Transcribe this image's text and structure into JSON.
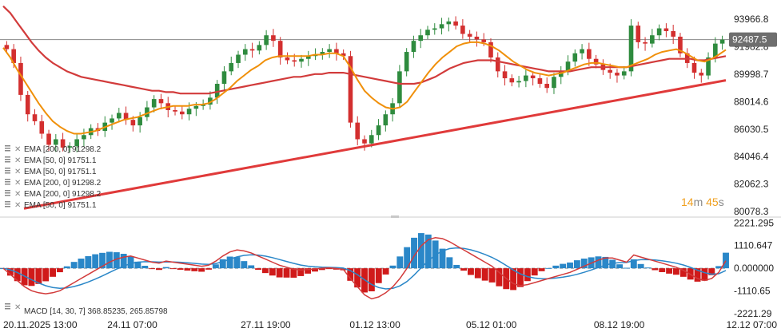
{
  "chart_data": {
    "type": "candlestick",
    "price_panel": {
      "y_ticks": [
        "93966.8",
        "91982.8",
        "89998.7",
        "88014.6",
        "86030.5",
        "84046.4",
        "82062.3",
        "80078.3"
      ],
      "y_tick_values": [
        93966.8,
        91982.8,
        89998.7,
        88014.6,
        86030.5,
        84046.4,
        82062.3,
        80078.3
      ],
      "ylim": [
        79800,
        95000
      ],
      "last_price": "92487.5",
      "last_price_value": 92487.5,
      "timer": {
        "minutes": "14",
        "m_unit": "m",
        "seconds": "45",
        "s_unit": "s"
      },
      "legend": [
        "EMA [200, 0] 91298.2",
        "EMA [50, 0] 91751.1",
        "EMA [50, 0] 91751.1",
        "EMA [200, 0] 91298.2",
        "EMA [200, 0] 91298.2",
        "EMA [50, 0] 91751.1"
      ],
      "ema50_color": "#f0900a",
      "ema200_color": "#d23b3b",
      "trendline_color": "#e03a3a",
      "trendline": [
        [
          0.0,
          80300
        ],
        [
          1.0,
          89550
        ]
      ],
      "candles_close": [
        91800,
        90800,
        88500,
        87100,
        86600,
        85700,
        84900,
        85300,
        84700,
        84800,
        85300,
        85600,
        86100,
        85900,
        86500,
        86800,
        87200,
        86700,
        86300,
        86900,
        87600,
        88200,
        87900,
        87400,
        87300,
        87100,
        87500,
        87700,
        87800,
        88300,
        89300,
        90200,
        90800,
        91400,
        91800,
        91700,
        92100,
        92800,
        92400,
        91200,
        91000,
        90900,
        91100,
        91300,
        91400,
        91600,
        91800,
        91500,
        91300,
        86500,
        85300,
        85000,
        85600,
        86300,
        87100,
        87900,
        90200,
        91600,
        92400,
        92800,
        93200,
        93300,
        93600,
        93800,
        93500,
        92900,
        92700,
        92500,
        92300,
        91200,
        90200,
        89700,
        89400,
        89500,
        89900,
        89700,
        89300,
        89000,
        89800,
        90200,
        90900,
        91500,
        91800,
        91100,
        90700,
        90300,
        90100,
        89900,
        90200,
        93500,
        92300,
        92200,
        92800,
        93300,
        93100,
        92700,
        91500,
        90800,
        90100,
        89900,
        91200,
        92200,
        92487.5
      ],
      "ema50_values": [
        91900,
        91200,
        90300,
        89500,
        88700,
        87900,
        87200,
        86600,
        86200,
        85900,
        85700,
        85700,
        85800,
        85900,
        86100,
        86300,
        86500,
        86700,
        86800,
        86900,
        87100,
        87300,
        87500,
        87600,
        87700,
        87700,
        87700,
        87800,
        87800,
        87900,
        88200,
        88600,
        89000,
        89500,
        89900,
        90300,
        90600,
        91000,
        91200,
        91300,
        91300,
        91300,
        91300,
        91300,
        91400,
        91400,
        91500,
        91500,
        91300,
        90500,
        89600,
        88800,
        88300,
        87900,
        87600,
        87500,
        87600,
        88000,
        88700,
        89400,
        90100,
        90700,
        91200,
        91600,
        92000,
        92200,
        92300,
        92300,
        92200,
        92000,
        91700,
        91300,
        90900,
        90600,
        90300,
        90100,
        90000,
        89900,
        90000,
        90100,
        90300,
        90500,
        90700,
        90800,
        90800,
        90700,
        90600,
        90500,
        90500,
        90700,
        90900,
        91100,
        91400,
        91600,
        91700,
        91800,
        91600,
        91300,
        91000,
        90900,
        91100,
        91400,
        91751.1
      ],
      "ema200_values": [
        94900,
        94400,
        93700,
        93000,
        92300,
        91700,
        91200,
        90800,
        90500,
        90200,
        90000,
        89800,
        89700,
        89600,
        89500,
        89400,
        89300,
        89200,
        89100,
        89000,
        88900,
        88800,
        88800,
        88700,
        88700,
        88600,
        88600,
        88600,
        88600,
        88600,
        88700,
        88800,
        88900,
        89000,
        89100,
        89200,
        89300,
        89400,
        89500,
        89600,
        89700,
        89800,
        89800,
        89900,
        90000,
        90000,
        90100,
        90100,
        90100,
        90000,
        89900,
        89800,
        89700,
        89600,
        89500,
        89400,
        89300,
        89300,
        89300,
        89400,
        89600,
        89800,
        90100,
        90400,
        90600,
        90800,
        90900,
        91000,
        91000,
        91000,
        90900,
        90800,
        90700,
        90600,
        90500,
        90400,
        90300,
        90200,
        90200,
        90200,
        90200,
        90300,
        90400,
        90500,
        90500,
        90500,
        90500,
        90500,
        90500,
        90600,
        90700,
        90800,
        90900,
        91000,
        91100,
        91100,
        91100,
        91100,
        91000,
        91000,
        91100,
        91200,
        91298.2
      ]
    },
    "macd_panel": {
      "y_ticks": [
        "2221.295",
        "1110.647",
        "0.000000",
        "-1110.65",
        "-2221.29"
      ],
      "y_tick_values": [
        2221.295,
        1110.647,
        0.0,
        -1110.65,
        -2221.29
      ],
      "ylim": [
        -2300,
        2350
      ],
      "legend": "MACD [14, 30, 7] 368.85235, 265.85798",
      "macd_color": "#d23b3b",
      "signal_color": "#2a87c8",
      "hist_pos_color": "#2a87c8",
      "hist_neg_color": "#d01a1a",
      "macd_values": [
        0,
        -300,
        -600,
        -900,
        -1100,
        -1200,
        -1250,
        -1200,
        -1100,
        -900,
        -700,
        -500,
        -300,
        -100,
        100,
        300,
        450,
        550,
        600,
        500,
        400,
        300,
        250,
        350,
        300,
        250,
        200,
        150,
        100,
        150,
        350,
        600,
        800,
        900,
        850,
        750,
        600,
        450,
        300,
        150,
        50,
        -50,
        -80,
        -60,
        -30,
        0,
        20,
        -10,
        -50,
        -500,
        -900,
        -1300,
        -1500,
        -1400,
        -1200,
        -900,
        -500,
        0,
        600,
        1100,
        1400,
        1500,
        1450,
        1300,
        1100,
        900,
        700,
        500,
        300,
        100,
        -200,
        -500,
        -750,
        -850,
        -800,
        -700,
        -600,
        -500,
        -400,
        -300,
        -200,
        -50,
        100,
        250,
        400,
        500,
        500,
        400,
        300,
        650,
        550,
        450,
        350,
        250,
        150,
        50,
        -100,
        -300,
        -500,
        -600,
        -500,
        -200,
        369
      ]
    },
    "x_ticks": [
      "20.11.2025 13:00",
      "24.11 07:00",
      "27.11 19:00",
      "01.12 13:00",
      "05.12 01:00",
      "08.12 19:00",
      "12.12 07:00"
    ],
    "x_tick_fracs": [
      0.0,
      0.1787,
      0.3632,
      0.5145,
      0.6755,
      0.8524,
      1.0
    ]
  }
}
